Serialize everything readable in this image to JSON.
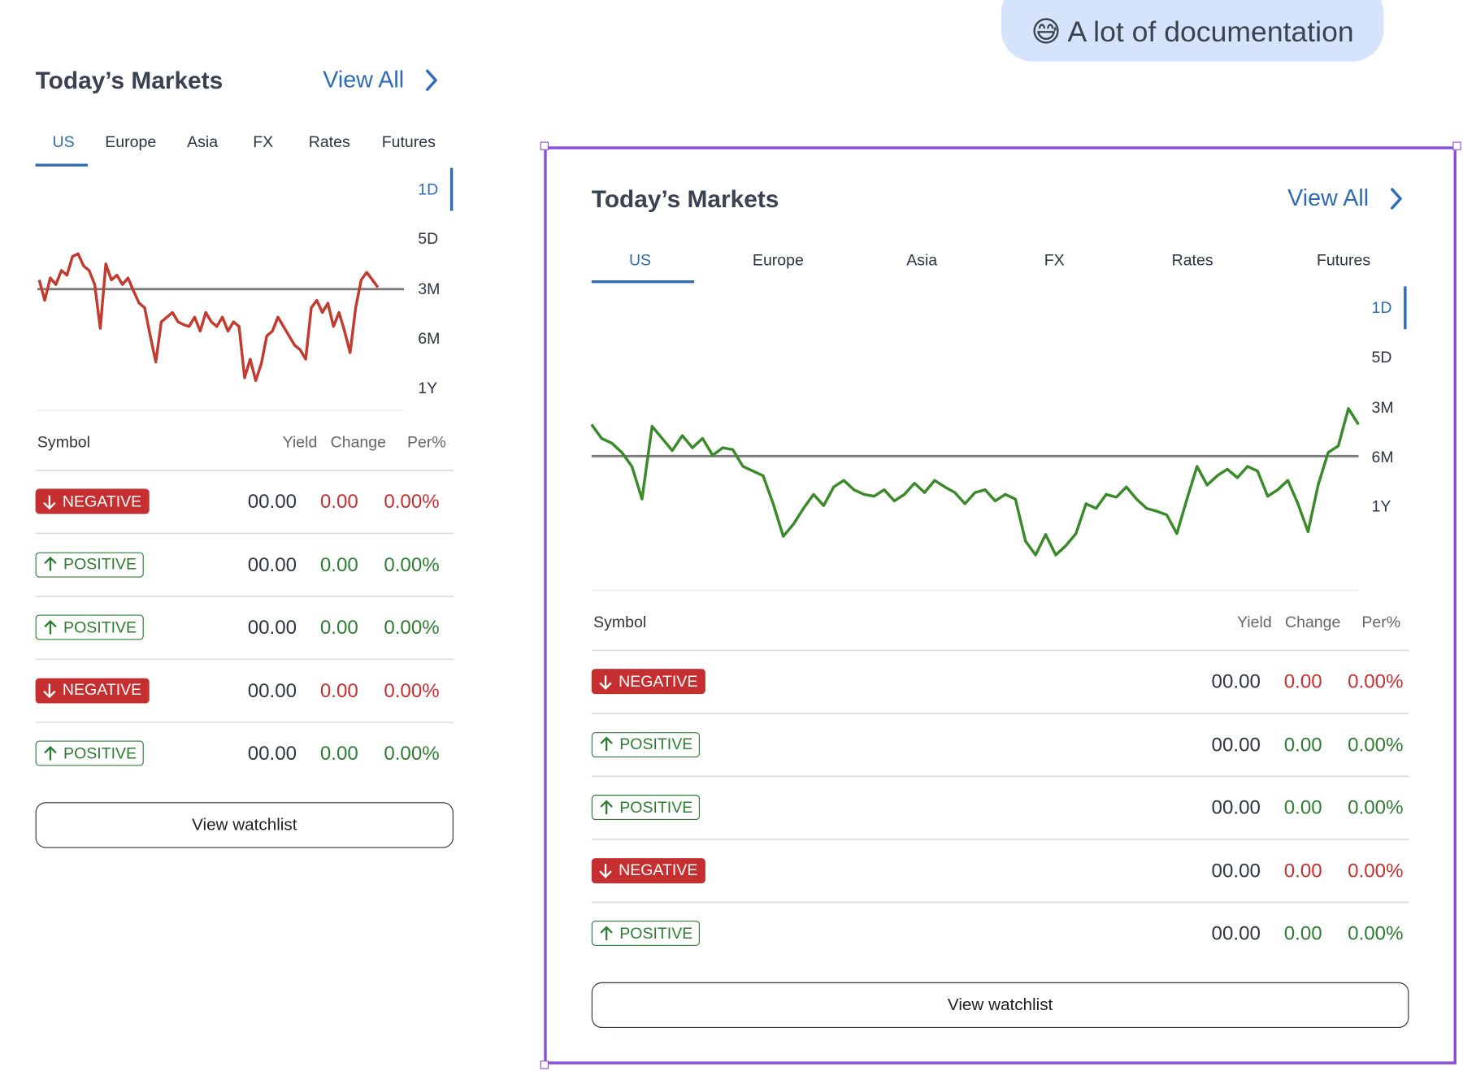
{
  "bubble": "😅 A lot of documentation",
  "widgets": [
    {
      "title": "Today’s Markets",
      "view_all": "View All",
      "tabs": [
        "US",
        "Europe",
        "Asia",
        "FX",
        "Rates",
        "Futures"
      ],
      "ranges": [
        "1D",
        "5D",
        "3M",
        "6M",
        "1Y"
      ],
      "chart": {
        "type": "line",
        "color": "#c23b2e",
        "baseline": 0,
        "values": [
          10,
          -12,
          12,
          5,
          20,
          15,
          35,
          38,
          25,
          20,
          5,
          -42,
          27,
          10,
          15,
          5,
          12,
          -2,
          -15,
          -20,
          -50,
          -78,
          -35,
          -30,
          -25,
          -35,
          -38,
          -40,
          -30,
          -45,
          -25,
          -35,
          -40,
          -30,
          -45,
          -35,
          -40,
          -95,
          -75,
          -98,
          -80,
          -50,
          -45,
          -30,
          -40,
          -50,
          -60,
          -65,
          -75,
          -20,
          -12,
          -25,
          -15,
          -40,
          -25,
          -45,
          -68,
          -20,
          10,
          18,
          10,
          2
        ]
      },
      "headers": {
        "symbol": "Symbol",
        "yield": "Yield",
        "change": "Change",
        "percent": "Per%"
      },
      "rows": [
        {
          "badge": "NEGATIVE",
          "filled": true,
          "color": "#c62f2f",
          "yield": "00.00",
          "change": "0.00",
          "percent": "0.00%"
        },
        {
          "badge": "POSITIVE",
          "filled": false,
          "color": "#2e7d32",
          "yield": "00.00",
          "change": "0.00",
          "percent": "0.00%"
        },
        {
          "badge": "POSITIVE",
          "filled": false,
          "color": "#2e7d32",
          "yield": "00.00",
          "change": "0.00",
          "percent": "0.00%"
        },
        {
          "badge": "NEGATIVE",
          "filled": true,
          "color": "#c62f2f",
          "yield": "00.00",
          "change": "0.00",
          "percent": "0.00%"
        },
        {
          "badge": "POSITIVE",
          "filled": false,
          "color": "#2e7d32",
          "yield": "00.00",
          "change": "0.00",
          "percent": "0.00%"
        }
      ],
      "button": "View watchlist"
    },
    {
      "title": "Today’s Markets",
      "view_all": "View All",
      "tabs": [
        "US",
        "Europe",
        "Asia",
        "FX",
        "Rates",
        "Futures"
      ],
      "ranges": [
        "1D",
        "5D",
        "3M",
        "6M",
        "1Y"
      ],
      "chart": {
        "type": "line",
        "color": "#3a8a2a",
        "baseline": 0,
        "values": [
          34,
          19,
          14,
          4,
          -11,
          -46,
          32,
          19,
          6,
          22,
          9,
          19,
          1,
          9,
          7,
          -11,
          -16,
          -21,
          -51,
          -86,
          -73,
          -56,
          -41,
          -53,
          -33,
          -26,
          -36,
          -41,
          -43,
          -36,
          -48,
          -41,
          -29,
          -39,
          -26,
          -33,
          -39,
          -51,
          -39,
          -36,
          -48,
          -41,
          -46,
          -91,
          -106,
          -84,
          -106,
          -96,
          -83,
          -51,
          -56,
          -41,
          -44,
          -33,
          -46,
          -56,
          -59,
          -63,
          -83,
          -46,
          -11,
          -31,
          -21,
          -14,
          -23,
          -11,
          -16,
          -43,
          -36,
          -26,
          -51,
          -81,
          -31,
          4,
          11,
          51,
          34
        ]
      },
      "headers": {
        "symbol": "Symbol",
        "yield": "Yield",
        "change": "Change",
        "percent": "Per%"
      },
      "rows": [
        {
          "badge": "NEGATIVE",
          "filled": true,
          "color": "#c62f2f",
          "yield": "00.00",
          "change": "0.00",
          "percent": "0.00%"
        },
        {
          "badge": "POSITIVE",
          "filled": false,
          "color": "#2e7d32",
          "yield": "00.00",
          "change": "0.00",
          "percent": "0.00%"
        },
        {
          "badge": "POSITIVE",
          "filled": false,
          "color": "#2e7d32",
          "yield": "00.00",
          "change": "0.00",
          "percent": "0.00%"
        },
        {
          "badge": "NEGATIVE",
          "filled": true,
          "color": "#c62f2f",
          "yield": "00.00",
          "change": "0.00",
          "percent": "0.00%"
        },
        {
          "badge": "POSITIVE",
          "filled": false,
          "color": "#2e7d32",
          "yield": "00.00",
          "change": "0.00",
          "percent": "0.00%"
        }
      ],
      "button": "View watchlist"
    }
  ]
}
